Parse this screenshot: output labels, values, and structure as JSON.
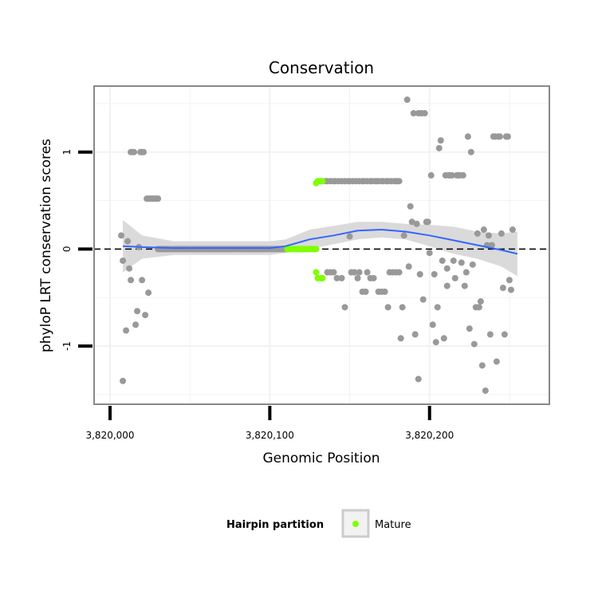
{
  "chart_data": {
    "type": "scatter",
    "title": "Conservation",
    "xlabel": "Genomic Position",
    "ylabel": "phyloP LRT conservation scores",
    "xlim": [
      3819990,
      3820275
    ],
    "ylim": [
      -1.6,
      1.68
    ],
    "x_ticks": [
      3820000,
      3820100,
      3820200
    ],
    "x_tick_labels": [
      "3,820,000",
      "3,820,100",
      "3,820,200"
    ],
    "y_ticks": [
      -1,
      0,
      1
    ],
    "y_tick_labels": [
      "-1",
      "0",
      "1"
    ],
    "grid": true,
    "reference_line": {
      "y": 0,
      "style": "dashed"
    },
    "legend": {
      "title": "Hairpin partition",
      "position": "bottom",
      "entries": [
        {
          "label": "Mature",
          "color": "#7fff00"
        }
      ]
    },
    "colors": {
      "points": "#999999",
      "mature": "#7fff00",
      "smooth": "#3366ff",
      "ribbon": "#d6d6d6",
      "panel_border": "#888888",
      "grid": "#f2f2f2"
    },
    "series": [
      {
        "name": "Other",
        "color": "#999999",
        "points": [
          [
            3820007,
            0.14
          ],
          [
            3820008,
            -0.12
          ],
          [
            3820008,
            -1.36
          ],
          [
            3820010,
            -0.84
          ],
          [
            3820011,
            0.08
          ],
          [
            3820012,
            -0.2
          ],
          [
            3820013,
            -0.32
          ],
          [
            3820013,
            1.0
          ],
          [
            3820014,
            1.0
          ],
          [
            3820015,
            1.0
          ],
          [
            3820016,
            -0.78
          ],
          [
            3820017,
            -0.64
          ],
          [
            3820018,
            0.02
          ],
          [
            3820019,
            1.0
          ],
          [
            3820020,
            1.0
          ],
          [
            3820020,
            -0.32
          ],
          [
            3820021,
            1.0
          ],
          [
            3820022,
            -0.68
          ],
          [
            3820023,
            0.52
          ],
          [
            3820024,
            0.52
          ],
          [
            3820024,
            -0.45
          ],
          [
            3820025,
            0.52
          ],
          [
            3820026,
            0.52
          ],
          [
            3820027,
            0.52
          ],
          [
            3820028,
            0.52
          ],
          [
            3820029,
            0.52
          ],
          [
            3820030,
            0.52
          ],
          [
            3820135,
            0.7
          ],
          [
            3820136,
            0.7
          ],
          [
            3820138,
            0.7
          ],
          [
            3820140,
            0.7
          ],
          [
            3820141,
            0.7
          ],
          [
            3820143,
            0.7
          ],
          [
            3820145,
            0.7
          ],
          [
            3820147,
            0.7
          ],
          [
            3820149,
            0.7
          ],
          [
            3820150,
            0.7
          ],
          [
            3820152,
            0.7
          ],
          [
            3820154,
            0.7
          ],
          [
            3820156,
            0.7
          ],
          [
            3820158,
            0.7
          ],
          [
            3820159,
            0.7
          ],
          [
            3820161,
            0.7
          ],
          [
            3820163,
            0.7
          ],
          [
            3820164,
            0.7
          ],
          [
            3820166,
            0.7
          ],
          [
            3820167,
            0.7
          ],
          [
            3820168,
            0.7
          ],
          [
            3820170,
            0.7
          ],
          [
            3820171,
            0.7
          ],
          [
            3820173,
            0.7
          ],
          [
            3820174,
            0.7
          ],
          [
            3820176,
            0.7
          ],
          [
            3820178,
            0.7
          ],
          [
            3820179,
            0.7
          ],
          [
            3820180,
            0.7
          ],
          [
            3820181,
            0.7
          ],
          [
            3820136,
            -0.24
          ],
          [
            3820138,
            -0.24
          ],
          [
            3820140,
            -0.24
          ],
          [
            3820142,
            -0.3
          ],
          [
            3820145,
            -0.3
          ],
          [
            3820147,
            -0.6
          ],
          [
            3820150,
            0.13
          ],
          [
            3820151,
            -0.24
          ],
          [
            3820153,
            -0.24
          ],
          [
            3820155,
            -0.3
          ],
          [
            3820156,
            -0.24
          ],
          [
            3820158,
            -0.44
          ],
          [
            3820160,
            -0.44
          ],
          [
            3820161,
            -0.24
          ],
          [
            3820163,
            -0.3
          ],
          [
            3820165,
            -0.3
          ],
          [
            3820168,
            -0.44
          ],
          [
            3820170,
            -0.44
          ],
          [
            3820172,
            -0.44
          ],
          [
            3820174,
            -0.6
          ],
          [
            3820175,
            -0.24
          ],
          [
            3820177,
            -0.24
          ],
          [
            3820179,
            -0.24
          ],
          [
            3820181,
            -0.24
          ],
          [
            3820182,
            -0.92
          ],
          [
            3820183,
            -0.6
          ],
          [
            3820184,
            0.14
          ],
          [
            3820186,
            1.54
          ],
          [
            3820187,
            -0.18
          ],
          [
            3820188,
            0.44
          ],
          [
            3820189,
            0.28
          ],
          [
            3820190,
            1.4
          ],
          [
            3820191,
            -0.88
          ],
          [
            3820192,
            0.26
          ],
          [
            3820193,
            -1.34
          ],
          [
            3820193,
            1.4
          ],
          [
            3820194,
            -0.26
          ],
          [
            3820195,
            1.4
          ],
          [
            3820196,
            -0.52
          ],
          [
            3820197,
            1.4
          ],
          [
            3820198,
            0.28
          ],
          [
            3820199,
            0.28
          ],
          [
            3820200,
            -0.04
          ],
          [
            3820201,
            0.76
          ],
          [
            3820202,
            -0.78
          ],
          [
            3820203,
            -0.26
          ],
          [
            3820204,
            -0.96
          ],
          [
            3820205,
            -0.6
          ],
          [
            3820206,
            1.04
          ],
          [
            3820207,
            1.12
          ],
          [
            3820208,
            -0.12
          ],
          [
            3820209,
            -0.92
          ],
          [
            3820210,
            0.76
          ],
          [
            3820211,
            -0.2
          ],
          [
            3820211,
            -0.38
          ],
          [
            3820212,
            0.76
          ],
          [
            3820213,
            0.76
          ],
          [
            3820214,
            0.76
          ],
          [
            3820215,
            -0.12
          ],
          [
            3820216,
            -0.3
          ],
          [
            3820217,
            0.76
          ],
          [
            3820218,
            0.76
          ],
          [
            3820219,
            0.76
          ],
          [
            3820220,
            -0.14
          ],
          [
            3820221,
            0.76
          ],
          [
            3820222,
            -0.38
          ],
          [
            3820223,
            -0.24
          ],
          [
            3820224,
            1.16
          ],
          [
            3820225,
            -0.82
          ],
          [
            3820226,
            1.0
          ],
          [
            3820227,
            -0.16
          ],
          [
            3820228,
            -0.98
          ],
          [
            3820229,
            -0.6
          ],
          [
            3820230,
            0.16
          ],
          [
            3820231,
            -0.6
          ],
          [
            3820232,
            -0.54
          ],
          [
            3820233,
            -1.2
          ],
          [
            3820234,
            0.2
          ],
          [
            3820235,
            -1.46
          ],
          [
            3820236,
            0.04
          ],
          [
            3820237,
            0.14
          ],
          [
            3820238,
            -0.88
          ],
          [
            3820239,
            0.04
          ],
          [
            3820240,
            1.16
          ],
          [
            3820241,
            1.16
          ],
          [
            3820242,
            -1.16
          ],
          [
            3820243,
            1.16
          ],
          [
            3820244,
            1.16
          ],
          [
            3820245,
            0.16
          ],
          [
            3820246,
            -0.4
          ],
          [
            3820247,
            -0.88
          ],
          [
            3820248,
            1.16
          ],
          [
            3820249,
            1.16
          ],
          [
            3820250,
            -0.32
          ],
          [
            3820251,
            -0.42
          ],
          [
            3820252,
            0.2
          ]
        ]
      },
      {
        "name": "Mature",
        "color": "#7fff00",
        "points": [
          [
            3820111,
            0.0
          ],
          [
            3820112,
            0.0
          ],
          [
            3820113,
            0.0
          ],
          [
            3820114,
            0.0
          ],
          [
            3820115,
            0.0
          ],
          [
            3820116,
            0.0
          ],
          [
            3820117,
            0.0
          ],
          [
            3820118,
            0.0
          ],
          [
            3820119,
            0.0
          ],
          [
            3820120,
            0.0
          ],
          [
            3820121,
            0.0
          ],
          [
            3820122,
            0.0
          ],
          [
            3820123,
            0.0
          ],
          [
            3820124,
            0.0
          ],
          [
            3820125,
            0.0
          ],
          [
            3820126,
            0.0
          ],
          [
            3820127,
            0.0
          ],
          [
            3820128,
            0.0
          ],
          [
            3820129,
            0.0
          ],
          [
            3820129,
            0.68
          ],
          [
            3820130,
            0.7
          ],
          [
            3820131,
            0.7
          ],
          [
            3820132,
            0.7
          ],
          [
            3820133,
            0.7
          ],
          [
            3820129,
            -0.24
          ],
          [
            3820130,
            -0.3
          ],
          [
            3820132,
            -0.3
          ],
          [
            3820133,
            -0.3
          ]
        ]
      }
    ],
    "flat_segment": {
      "x": [
        3820030,
        3820110
      ],
      "y": 0.0
    },
    "smooth": {
      "x": [
        3820008,
        3820020,
        3820040,
        3820070,
        3820100,
        3820110,
        3820125,
        3820140,
        3820155,
        3820170,
        3820185,
        3820200,
        3820215,
        3820230,
        3820245,
        3820255
      ],
      "y": [
        0.03,
        0.02,
        0.01,
        0.01,
        0.01,
        0.03,
        0.1,
        0.14,
        0.19,
        0.2,
        0.18,
        0.14,
        0.09,
        0.04,
        -0.01,
        -0.05
      ],
      "ymin": [
        -0.24,
        -0.1,
        -0.06,
        -0.06,
        -0.06,
        -0.04,
        0.0,
        0.05,
        0.1,
        0.12,
        0.1,
        0.03,
        -0.05,
        -0.1,
        -0.18,
        -0.28
      ],
      "ymax": [
        0.3,
        0.14,
        0.08,
        0.08,
        0.08,
        0.1,
        0.2,
        0.24,
        0.28,
        0.28,
        0.26,
        0.25,
        0.23,
        0.18,
        0.16,
        0.18
      ]
    }
  }
}
